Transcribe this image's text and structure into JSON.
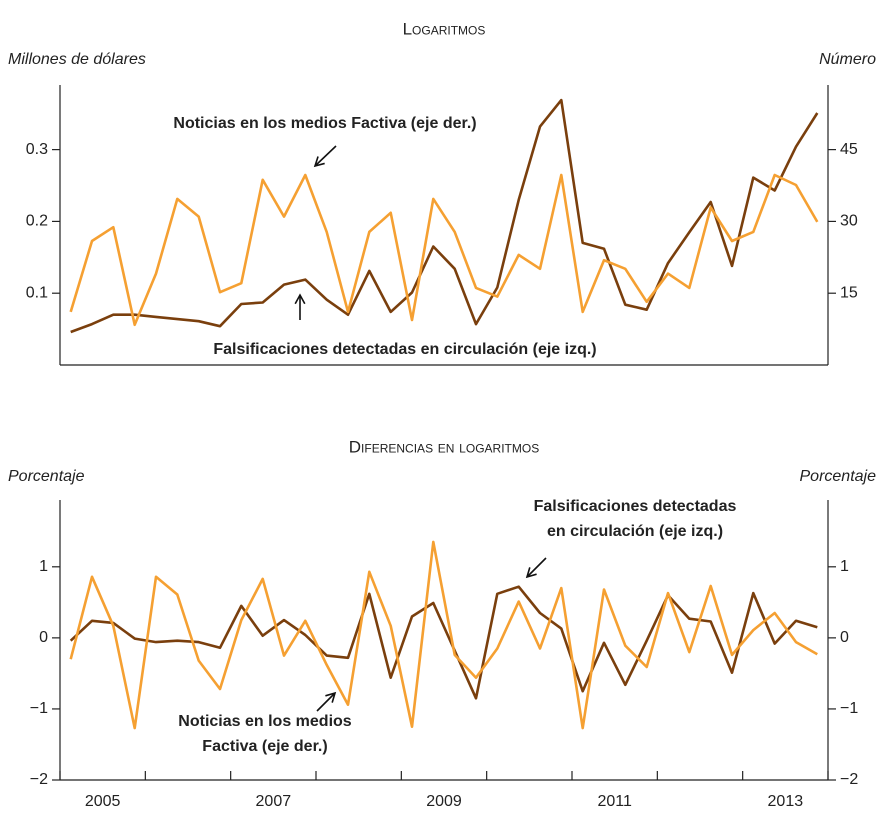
{
  "chart_data": [
    {
      "type": "line",
      "title": "Logaritmos",
      "ylabel": "Millones de dólares",
      "y2label": "Número",
      "x": [
        2005.125,
        2005.375,
        2005.625,
        2005.875,
        2006.125,
        2006.375,
        2006.625,
        2006.875,
        2007.125,
        2007.375,
        2007.625,
        2007.875,
        2008.125,
        2008.375,
        2008.625,
        2008.875,
        2009.125,
        2009.375,
        2009.625,
        2009.875,
        2010.125,
        2010.375,
        2010.625,
        2010.875,
        2011.125,
        2011.375,
        2011.625,
        2011.875,
        2012.125,
        2012.375,
        2012.625,
        2012.875,
        2013.125,
        2013.375,
        2013.625,
        2013.875
      ],
      "xlim": [
        2005,
        2014
      ],
      "ylim": [
        0,
        0.39
      ],
      "yticks": [
        0.1,
        0.2,
        0.3
      ],
      "y2lim": [
        0,
        58.5
      ],
      "y2ticks": [
        15,
        30,
        45
      ],
      "series": [
        {
          "name": "Falsificaciones detectadas en circulación (eje izq.)",
          "color": "#7a3f0d",
          "values": [
            0.046,
            0.057,
            0.07,
            0.07,
            0.067,
            0.064,
            0.061,
            0.054,
            0.085,
            0.087,
            0.112,
            0.119,
            0.091,
            0.07,
            0.131,
            0.074,
            0.101,
            0.165,
            0.134,
            0.057,
            0.108,
            0.23,
            0.332,
            0.369,
            0.17,
            0.162,
            0.084,
            0.077,
            0.142,
            0.185,
            0.227,
            0.138,
            0.261,
            0.243,
            0.304,
            0.351
          ]
        },
        {
          "name": "Noticias en los medios Factiva (eje der.)",
          "color": "#f5a032",
          "axis": "y2",
          "values": [
            11.1,
            25.9,
            28.8,
            8.4,
            19.1,
            34.7,
            31.0,
            15.2,
            17.1,
            38.7,
            31.0,
            39.7,
            27.8,
            11.1,
            27.8,
            31.8,
            9.4,
            34.7,
            27.8,
            16.1,
            14.3,
            23.0,
            20.1,
            39.7,
            11.1,
            21.9,
            20.1,
            13.2,
            19.1,
            16.1,
            32.9,
            25.9,
            27.8,
            39.7,
            37.6,
            29.9
          ]
        }
      ],
      "annotations": [
        [
          "Noticias en los medios Factiva (eje der.)"
        ],
        [
          "Falsificaciones detectadas en circulación (eje izq.)"
        ]
      ]
    },
    {
      "type": "line",
      "title": "Diferencias en logaritmos",
      "ylabel": "Porcentaje",
      "y2label": "Porcentaje",
      "x": [
        2005.125,
        2005.375,
        2005.625,
        2005.875,
        2006.125,
        2006.375,
        2006.625,
        2006.875,
        2007.125,
        2007.375,
        2007.625,
        2007.875,
        2008.125,
        2008.375,
        2008.625,
        2008.875,
        2009.125,
        2009.375,
        2009.625,
        2009.875,
        2010.125,
        2010.375,
        2010.625,
        2010.875,
        2011.125,
        2011.375,
        2011.625,
        2011.875,
        2012.125,
        2012.375,
        2012.625,
        2012.875,
        2013.125,
        2013.375,
        2013.625,
        2013.875
      ],
      "xlim": [
        2005,
        2014
      ],
      "xticks": [
        2005,
        2006,
        2007,
        2008,
        2009,
        2010,
        2011,
        2012,
        2013,
        2014
      ],
      "xticklabels": [
        {
          "value": 2005.5,
          "label": "2005"
        },
        {
          "value": 2007.5,
          "label": "2007"
        },
        {
          "value": 2009.5,
          "label": "2009"
        },
        {
          "value": 2011.5,
          "label": "2011"
        },
        {
          "value": 2013.5,
          "label": "2013"
        }
      ],
      "ylim": [
        -2,
        1.94
      ],
      "yticks": [
        {
          "value": -2,
          "label": "−2"
        },
        {
          "value": -1,
          "label": "−1"
        },
        0,
        1
      ],
      "y2lim": [
        -2,
        1.94
      ],
      "y2ticks": [
        {
          "value": -2,
          "label": "−2"
        },
        {
          "value": -1,
          "label": "−1"
        },
        0,
        1
      ],
      "series": [
        {
          "name": "Falsificaciones detectadas en circulación (eje izq.)",
          "color": "#7a3f0d",
          "values": [
            -0.04,
            0.24,
            0.21,
            -0.01,
            -0.06,
            -0.04,
            -0.06,
            -0.14,
            0.45,
            0.03,
            0.25,
            0.04,
            -0.25,
            -0.28,
            0.62,
            -0.56,
            0.3,
            0.49,
            -0.18,
            -0.85,
            0.62,
            0.72,
            0.35,
            0.13,
            -0.75,
            -0.07,
            -0.66,
            -0.04,
            0.6,
            0.27,
            0.23,
            -0.49,
            0.63,
            -0.08,
            0.24,
            0.15
          ]
        },
        {
          "name": "Noticias en los medios Factiva (eje der.)",
          "color": "#f5a032",
          "axis": "y2",
          "values": [
            -0.3,
            0.86,
            0.17,
            -1.27,
            0.86,
            0.61,
            -0.32,
            -0.72,
            0.25,
            0.83,
            -0.25,
            0.24,
            -0.38,
            -0.94,
            0.93,
            0.17,
            -1.25,
            1.35,
            -0.24,
            -0.56,
            -0.15,
            0.51,
            -0.15,
            0.7,
            -1.27,
            0.68,
            -0.11,
            -0.41,
            0.63,
            -0.2,
            0.73,
            -0.24,
            0.11,
            0.35,
            -0.06,
            -0.23
          ]
        }
      ],
      "annotations": [
        [
          "Falsificaciones detectadas",
          "en circulación (eje izq.)"
        ],
        [
          "Noticias en los medios",
          "Factiva (eje der.)"
        ]
      ]
    }
  ]
}
